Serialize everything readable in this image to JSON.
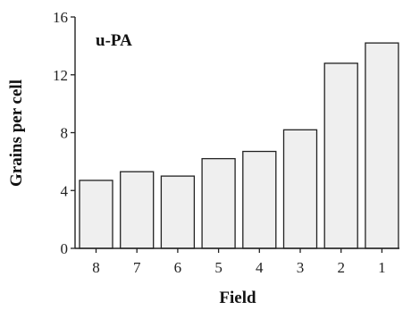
{
  "chart_data": {
    "type": "bar",
    "title": "u-PA",
    "xlabel": "Field",
    "ylabel": "Grains per cell",
    "categories": [
      "8",
      "7",
      "6",
      "5",
      "4",
      "3",
      "2",
      "1"
    ],
    "values": [
      4.7,
      5.3,
      5.0,
      6.2,
      6.7,
      8.2,
      12.8,
      14.2
    ],
    "ylim": [
      0,
      16
    ],
    "yticks": [
      0,
      4,
      8,
      12,
      16
    ],
    "grid": false,
    "colors": {
      "bar_fill": "#efefef",
      "bar_stroke": "#222222",
      "axis": "#222222"
    }
  }
}
